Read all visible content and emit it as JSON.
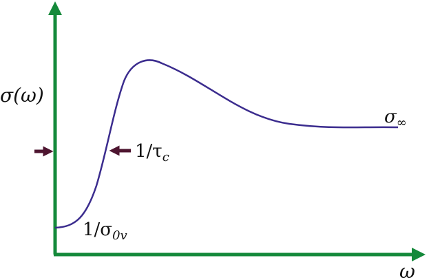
{
  "diagram": {
    "y_axis_label": "σ(ω)",
    "x_axis_label": "ω",
    "curve_end_label": {
      "base": "σ",
      "sub": "∞"
    },
    "inflection_label": {
      "base": "1/τ",
      "sub": "c"
    },
    "origin_label": {
      "base": "1/σ",
      "sub": "0v"
    }
  }
}
